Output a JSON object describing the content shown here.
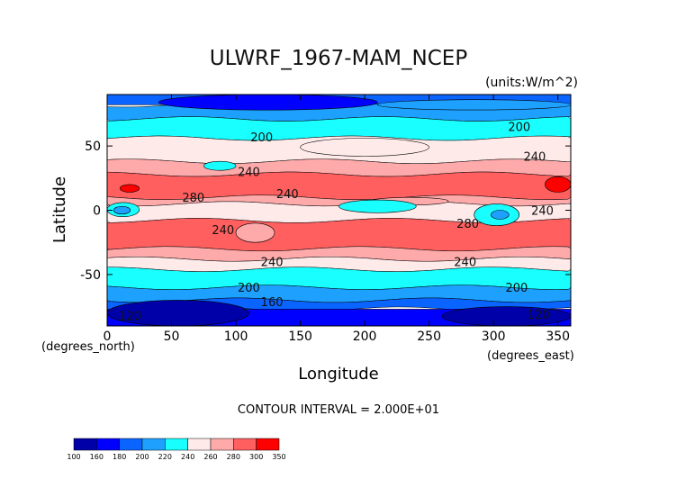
{
  "chart_data": {
    "type": "heatmap",
    "title": "ULWRF_1967-MAM_NCEP",
    "units": "(units:W/m^2)",
    "xlabel": "Longitude",
    "ylabel": "Latitude",
    "x_unit_note": "(degrees_east)",
    "y_unit_note": "(degrees_north)",
    "xlim": [
      0,
      360
    ],
    "ylim": [
      -90,
      90
    ],
    "x_ticks": [
      0,
      50,
      100,
      150,
      200,
      250,
      300,
      350
    ],
    "y_ticks": [
      -50,
      0,
      50
    ],
    "contour_interval_text": "CONTOUR INTERVAL = 2.000E+01",
    "contour_labels": [
      {
        "text": "200",
        "lon": 120,
        "lat": 57
      },
      {
        "text": "200",
        "lon": 320,
        "lat": 65
      },
      {
        "text": "240",
        "lon": 110,
        "lat": 30
      },
      {
        "text": "240",
        "lon": 332,
        "lat": 42
      },
      {
        "text": "280",
        "lon": 67,
        "lat": 10
      },
      {
        "text": "240",
        "lon": 140,
        "lat": 13
      },
      {
        "text": "240",
        "lon": 90,
        "lat": -15
      },
      {
        "text": "280",
        "lon": 280,
        "lat": -10
      },
      {
        "text": "240",
        "lon": 338,
        "lat": 0
      },
      {
        "text": "240",
        "lon": 128,
        "lat": -40
      },
      {
        "text": "240",
        "lon": 278,
        "lat": -40
      },
      {
        "text": "200",
        "lon": 110,
        "lat": -60
      },
      {
        "text": "200",
        "lon": 318,
        "lat": -60
      },
      {
        "text": "160",
        "lon": 128,
        "lat": -71
      },
      {
        "text": "120",
        "lon": 18,
        "lat": -82
      },
      {
        "text": "120",
        "lon": 335,
        "lat": -81
      }
    ],
    "colorbar": {
      "levels": [
        "100",
        "160",
        "180",
        "200",
        "220",
        "240",
        "260",
        "280",
        "300",
        "350"
      ],
      "colors": [
        "#0000a8",
        "#0000ff",
        "#0a64ff",
        "#1ea0ff",
        "#19ffff",
        "#ffeaea",
        "#ffaaaa",
        "#ff5f5f",
        "#ff0000"
      ]
    },
    "bands": [
      {
        "lat_top": 90,
        "lat_bot": 82,
        "color": "#0a64ff"
      },
      {
        "lat_top": 82,
        "lat_bot": 71,
        "color": "#1ea0ff"
      },
      {
        "lat_top": 71,
        "lat_bot": 56,
        "color": "#19ffff"
      },
      {
        "lat_top": 56,
        "lat_bot": 38,
        "color": "#ffeaea"
      },
      {
        "lat_top": 38,
        "lat_bot": 28,
        "color": "#ffaaaa"
      },
      {
        "lat_top": 28,
        "lat_bot": 10,
        "color": "#ff5f5f"
      },
      {
        "lat_top": 10,
        "lat_bot": 5,
        "color": "#ffaaaa"
      },
      {
        "lat_top": 5,
        "lat_bot": -8,
        "color": "#ffeaea"
      },
      {
        "lat_top": -8,
        "lat_bot": -30,
        "color": "#ff5f5f"
      },
      {
        "lat_top": -30,
        "lat_bot": -38,
        "color": "#ffaaaa"
      },
      {
        "lat_top": -38,
        "lat_bot": -46,
        "color": "#ffeaea"
      },
      {
        "lat_top": -46,
        "lat_bot": -60,
        "color": "#19ffff"
      },
      {
        "lat_top": -60,
        "lat_bot": -70,
        "color": "#1ea0ff"
      },
      {
        "lat_top": -70,
        "lat_bot": -77,
        "color": "#0a64ff"
      },
      {
        "lat_top": -77,
        "lat_bot": -90,
        "color": "#0000ff"
      }
    ],
    "features": [
      {
        "lon0": 40,
        "lon1": 210,
        "lat_top": 90,
        "lat_bot": 78,
        "color": "#0000ff"
      },
      {
        "lon0": 210,
        "lon1": 360,
        "lat_top": 86,
        "lat_bot": 78,
        "color": "#1ea0ff"
      },
      {
        "lon0": 150,
        "lon1": 250,
        "lat_top": 56,
        "lat_bot": 42,
        "color": "#ffeaea"
      },
      {
        "lon0": 75,
        "lon1": 100,
        "lat_top": 38,
        "lat_bot": 31,
        "color": "#19ffff"
      },
      {
        "lon0": 205,
        "lon1": 265,
        "lat_top": 10,
        "lat_bot": 4,
        "color": "#ffaaaa"
      },
      {
        "lon0": 180,
        "lon1": 240,
        "lat_top": 8,
        "lat_bot": -2,
        "color": "#19ffff"
      },
      {
        "lon0": 0,
        "lon1": 25,
        "lat_top": 6,
        "lat_bot": -5,
        "color": "#19ffff"
      },
      {
        "lon0": 5,
        "lon1": 18,
        "lat_top": 3,
        "lat_bot": -3,
        "color": "#1ea0ff"
      },
      {
        "lon0": 285,
        "lon1": 320,
        "lat_top": 5,
        "lat_bot": -12,
        "color": "#19ffff"
      },
      {
        "lon0": 298,
        "lon1": 312,
        "lat_top": 0,
        "lat_bot": -7,
        "color": "#1ea0ff"
      },
      {
        "lon0": 100,
        "lon1": 130,
        "lat_top": -10,
        "lat_bot": -25,
        "color": "#ffaaaa"
      },
      {
        "lon0": 340,
        "lon1": 360,
        "lat_top": 26,
        "lat_bot": 14,
        "color": "#ff0000"
      },
      {
        "lon0": 10,
        "lon1": 25,
        "lat_top": 20,
        "lat_bot": 14,
        "color": "#ff0000"
      },
      {
        "lon0": 0,
        "lon1": 110,
        "lat_top": -70,
        "lat_bot": -90,
        "color": "#0000a8"
      },
      {
        "lon0": 260,
        "lon1": 360,
        "lat_top": -75,
        "lat_bot": -90,
        "color": "#0000a8"
      }
    ]
  }
}
